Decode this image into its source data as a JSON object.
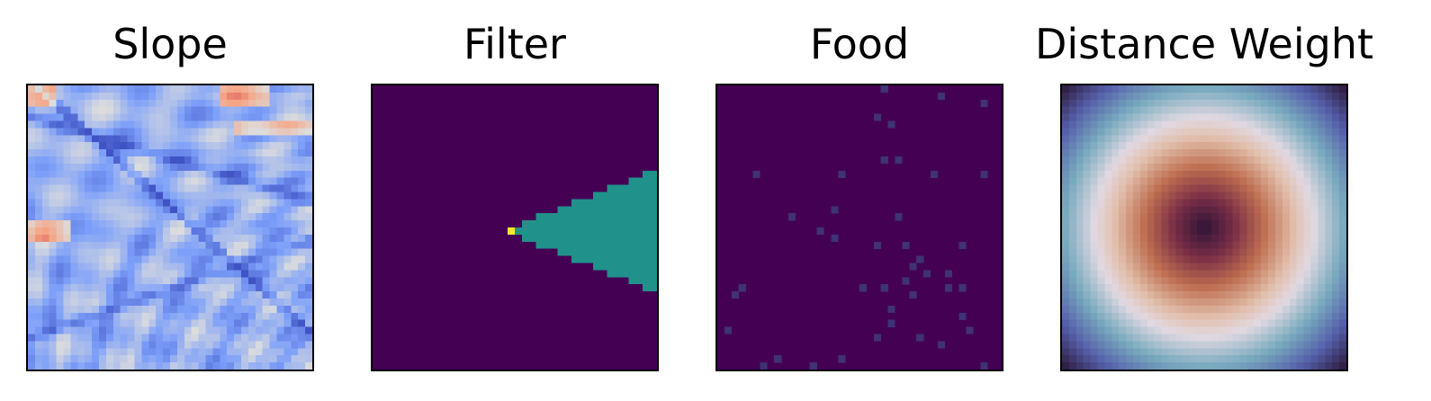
{
  "chart_data": [
    {
      "type": "heatmap",
      "title": "Slope",
      "colormap": "coolwarm",
      "grid_size": 40,
      "value_range": [
        0,
        1
      ],
      "description_of_values": "mostly low slope (blue, 0.1-0.4) with dark blue ridge lines running diagonally from upper-left toward lower-right and a few warm (orange) patches near top and left edge",
      "grid": false,
      "axis_ticks": false
    },
    {
      "type": "heatmap",
      "title": "Filter",
      "colormap": "viridis",
      "grid_size": 40,
      "value_range": [
        0,
        2
      ],
      "background_value": 0,
      "cone_value": 1,
      "agent_value": 2,
      "agent_cell": [
        19,
        20
      ],
      "cone_direction": "right",
      "cone_x_range": [
        20,
        39
      ],
      "cone_max_half_height": 8,
      "grid": false,
      "axis_ticks": false
    },
    {
      "type": "heatmap",
      "title": "Food",
      "colormap": "viridis",
      "grid_size": 40,
      "value_range": [
        0,
        1
      ],
      "background_value": 0,
      "food_value_approx": 0.15,
      "food_cells": [
        [
          23,
          0
        ],
        [
          31,
          1
        ],
        [
          37,
          2
        ],
        [
          22,
          4
        ],
        [
          24,
          5
        ],
        [
          25,
          10
        ],
        [
          23,
          10
        ],
        [
          5,
          12
        ],
        [
          17,
          12
        ],
        [
          30,
          12
        ],
        [
          37,
          12
        ],
        [
          16,
          17
        ],
        [
          10,
          18
        ],
        [
          25,
          18
        ],
        [
          14,
          20
        ],
        [
          26,
          22
        ],
        [
          22,
          22
        ],
        [
          34,
          22
        ],
        [
          16,
          21
        ],
        [
          28,
          24
        ],
        [
          27,
          25
        ],
        [
          29,
          26
        ],
        [
          32,
          26
        ],
        [
          26,
          27
        ],
        [
          20,
          28
        ],
        [
          23,
          28
        ],
        [
          32,
          28
        ],
        [
          34,
          28
        ],
        [
          2,
          29
        ],
        [
          27,
          29
        ],
        [
          3,
          28
        ],
        [
          24,
          31
        ],
        [
          34,
          32
        ],
        [
          24,
          33
        ],
        [
          1,
          34
        ],
        [
          28,
          35
        ],
        [
          35,
          34
        ],
        [
          22,
          35
        ],
        [
          31,
          36
        ],
        [
          6,
          39
        ],
        [
          8,
          38
        ],
        [
          13,
          39
        ],
        [
          17,
          38
        ],
        [
          37,
          39
        ]
      ],
      "grid": false,
      "axis_ticks": false
    },
    {
      "type": "heatmap",
      "title": "Distance Weight",
      "colormap": "twilight",
      "grid_size": 40,
      "value_range": [
        0,
        1
      ],
      "center_cell": [
        20,
        20
      ],
      "description_of_values": "radially symmetric; dark at center, orange/red band, white ring near radius ~14, blue then purple toward corners",
      "grid": false,
      "axis_ticks": false
    }
  ]
}
